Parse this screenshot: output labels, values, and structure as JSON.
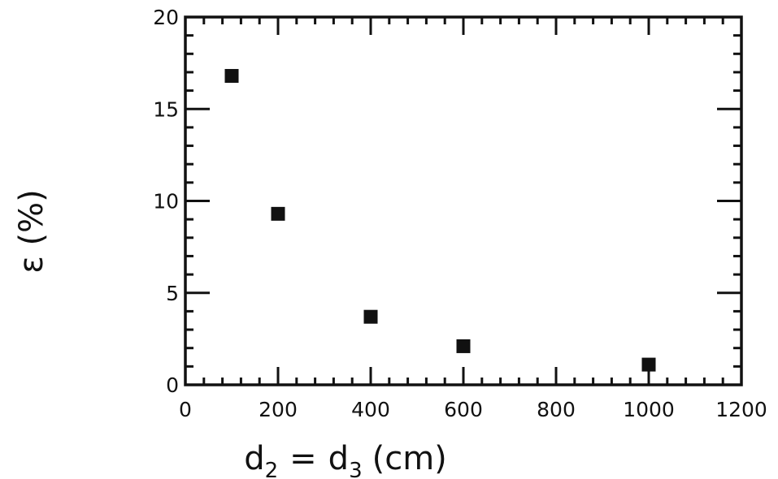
{
  "chart_data": {
    "type": "scatter",
    "x": [
      100,
      200,
      400,
      600,
      1000
    ],
    "y": [
      16.8,
      9.3,
      3.7,
      2.1,
      1.1
    ],
    "xlim": [
      0,
      1200
    ],
    "ylim": [
      0,
      20
    ],
    "x_ticks": [
      0,
      200,
      400,
      600,
      800,
      1000,
      1200
    ],
    "x_tick_labels": [
      "0",
      "200",
      "400",
      "600",
      "800",
      "1000",
      "1200"
    ],
    "y_ticks": [
      0,
      5,
      10,
      15,
      20
    ],
    "y_tick_labels": [
      "0",
      "5",
      "10",
      "15",
      "20"
    ],
    "xlabel": "d2 = d3 (cm)",
    "xlabel_parts": {
      "d": "d",
      "sub1": "2",
      "eq": "=",
      "sub2": "3",
      "unit": "(cm)"
    },
    "ylabel": "ε (%)",
    "grid": false,
    "marker": "square",
    "color": "#111111"
  }
}
